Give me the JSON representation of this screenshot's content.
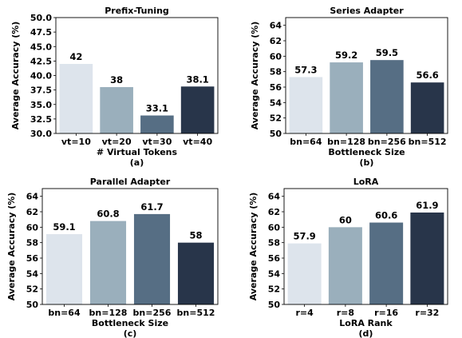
{
  "colors": [
    "#dde4ec",
    "#9aafbc",
    "#566e84",
    "#28354a"
  ],
  "chart_data": [
    {
      "type": "bar",
      "title": "Prefix-Tuning",
      "xlabel": "# Virtual Tokens",
      "ylabel": "Average Accuracy (%)",
      "caption": "(a)",
      "categories": [
        "vt=10",
        "vt=20",
        "vt=30",
        "vt=40"
      ],
      "values": [
        42,
        38,
        33.1,
        38.1
      ],
      "value_labels": [
        "42",
        "38",
        "33.1",
        "38.1"
      ],
      "ylim": [
        30,
        50
      ],
      "yticks": [
        30.0,
        32.5,
        35.0,
        37.5,
        40.0,
        42.5,
        45.0,
        47.5,
        50.0
      ],
      "ytick_labels": [
        "30.0",
        "32.5",
        "35.0",
        "37.5",
        "40.0",
        "42.5",
        "45.0",
        "47.5",
        "50.0"
      ],
      "grid": false
    },
    {
      "type": "bar",
      "title": "Series Adapter",
      "xlabel": "Bottleneck Size",
      "ylabel": "Average Accuracy (%)",
      "caption": "(b)",
      "categories": [
        "bn=64",
        "bn=128",
        "bn=256",
        "bn=512"
      ],
      "values": [
        57.3,
        59.2,
        59.5,
        56.6
      ],
      "value_labels": [
        "57.3",
        "59.2",
        "59.5",
        "56.6"
      ],
      "ylim": [
        50,
        65
      ],
      "yticks": [
        50,
        52,
        54,
        56,
        58,
        60,
        62,
        64
      ],
      "ytick_labels": [
        "50",
        "52",
        "54",
        "56",
        "58",
        "60",
        "62",
        "64"
      ],
      "grid": false
    },
    {
      "type": "bar",
      "title": "Parallel Adapter",
      "xlabel": "Bottleneck Size",
      "ylabel": "Average Accuracy (%)",
      "caption": "(c)",
      "categories": [
        "bn=64",
        "bn=128",
        "bn=256",
        "bn=512"
      ],
      "values": [
        59.1,
        60.8,
        61.7,
        58
      ],
      "value_labels": [
        "59.1",
        "60.8",
        "61.7",
        "58"
      ],
      "ylim": [
        50,
        65
      ],
      "yticks": [
        50,
        52,
        54,
        56,
        58,
        60,
        62,
        64
      ],
      "ytick_labels": [
        "50",
        "52",
        "54",
        "56",
        "58",
        "60",
        "62",
        "64"
      ],
      "grid": false
    },
    {
      "type": "bar",
      "title": "LoRA",
      "xlabel": "LoRA Rank",
      "ylabel": "Average Accuracy (%)",
      "caption": "(d)",
      "categories": [
        "r=4",
        "r=8",
        "r=16",
        "r=32"
      ],
      "values": [
        57.9,
        60,
        60.6,
        61.9
      ],
      "value_labels": [
        "57.9",
        "60",
        "60.6",
        "61.9"
      ],
      "ylim": [
        50,
        65
      ],
      "yticks": [
        50,
        52,
        54,
        56,
        58,
        60,
        62,
        64
      ],
      "ytick_labels": [
        "50",
        "52",
        "54",
        "56",
        "58",
        "60",
        "62",
        "64"
      ],
      "grid": false
    }
  ]
}
